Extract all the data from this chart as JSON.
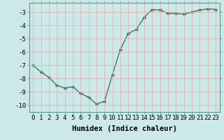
{
  "x": [
    0,
    1,
    2,
    3,
    4,
    5,
    6,
    7,
    8,
    9,
    10,
    11,
    12,
    13,
    14,
    15,
    16,
    17,
    18,
    19,
    20,
    21,
    22,
    23
  ],
  "y": [
    -7.0,
    -7.5,
    -7.9,
    -8.5,
    -8.7,
    -8.6,
    -9.1,
    -9.4,
    -9.9,
    -9.7,
    -7.7,
    -5.8,
    -4.6,
    -4.3,
    -3.4,
    -2.8,
    -2.85,
    -3.1,
    -3.1,
    -3.15,
    -3.0,
    -2.85,
    -2.75,
    -2.8
  ],
  "line_color": "#2a6b5e",
  "marker": "D",
  "marker_size": 2.2,
  "bg_color": "#cde8e8",
  "grid_color_major": "#e8b0b0",
  "grid_color_minor": "#e8b0b0",
  "axis_color": "#5a8a80",
  "xlabel": "Humidex (Indice chaleur)",
  "xlim": [
    -0.5,
    23.5
  ],
  "ylim": [
    -10.5,
    -2.3
  ],
  "yticks": [
    -10,
    -9,
    -8,
    -7,
    -6,
    -5,
    -4,
    -3
  ],
  "xticks": [
    0,
    1,
    2,
    3,
    4,
    5,
    6,
    7,
    8,
    9,
    10,
    11,
    12,
    13,
    14,
    15,
    16,
    17,
    18,
    19,
    20,
    21,
    22,
    23
  ],
  "xlabel_fontsize": 7.5,
  "tick_fontsize": 6.5,
  "spine_color": "#5a9a90"
}
